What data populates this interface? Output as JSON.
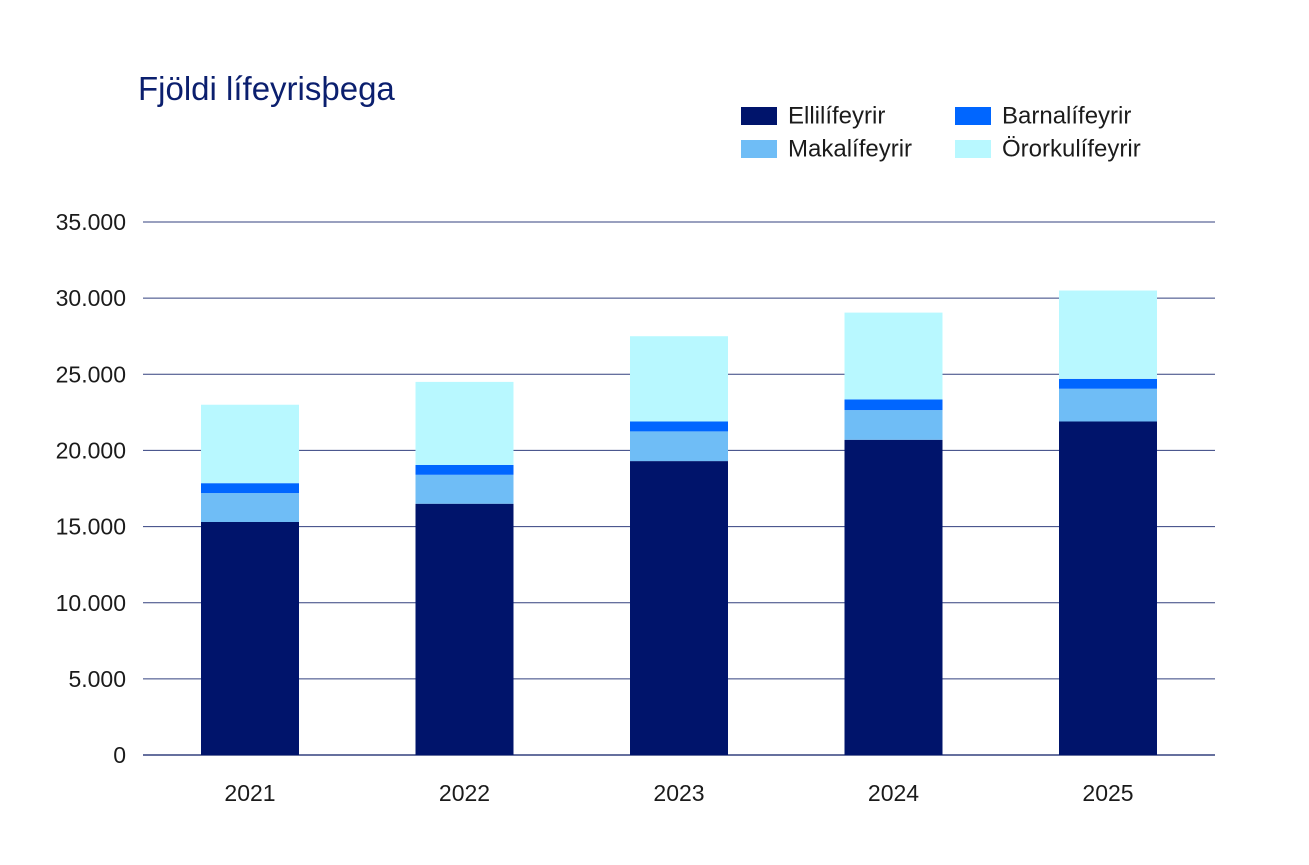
{
  "chart_data": {
    "type": "bar",
    "stacked": true,
    "title": "Fjöldi lífeyrisþega",
    "xlabel": "",
    "ylabel": "",
    "categories": [
      "2021",
      "2022",
      "2023",
      "2024",
      "2025"
    ],
    "series": [
      {
        "name": "Ellilífeyrir",
        "color": "#00146b",
        "values": [
          15300,
          16500,
          19300,
          20700,
          21900
        ]
      },
      {
        "name": "Makalífeyrir",
        "color": "#6fbdf6",
        "values": [
          1900,
          1900,
          1950,
          1950,
          2150
        ]
      },
      {
        "name": "Barnalífeyrir",
        "color": "#0066ff",
        "values": [
          650,
          650,
          650,
          700,
          650
        ]
      },
      {
        "name": "Örorkulífeyrir",
        "color": "#b8f8ff",
        "values": [
          5150,
          5450,
          5600,
          5700,
          5800
        ]
      }
    ],
    "ylim": [
      0,
      35000
    ],
    "yticks": [
      0,
      5000,
      10000,
      15000,
      20000,
      25000,
      30000,
      35000
    ],
    "ytick_labels": [
      "0",
      "5.000",
      "10.000",
      "15.000",
      "20.000",
      "25.000",
      "30.000",
      "35.000"
    ],
    "grid": true,
    "legend_position": "top-right",
    "legend_order": [
      "Ellilífeyrir",
      "Barnalífeyrir",
      "Makalífeyrir",
      "Örorkulífeyrir"
    ],
    "colors": {
      "title": "#0b1f6e",
      "grid": "#33407f",
      "text": "#1b1b1b"
    }
  }
}
